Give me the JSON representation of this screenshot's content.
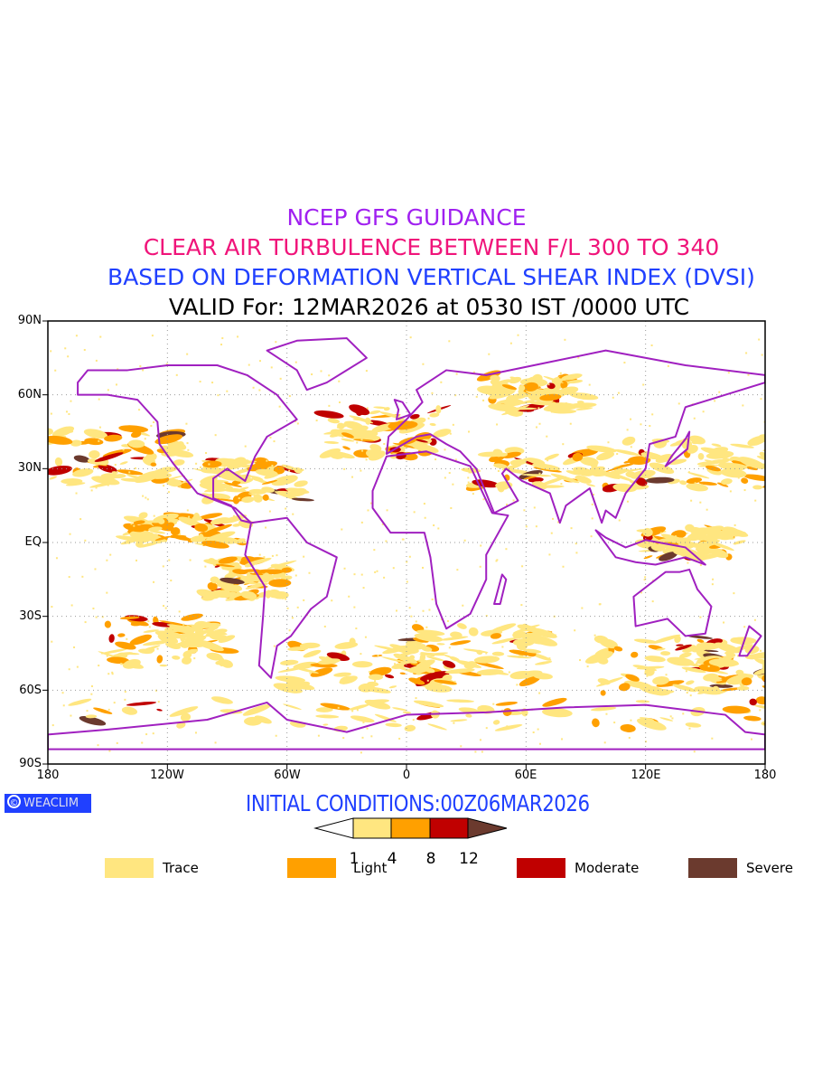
{
  "titles": {
    "line1": "NCEP GFS GUIDANCE",
    "line2": "CLEAR AIR TURBULENCE BETWEEN F/L 300 TO 340",
    "line3": "BASED ON DEFORMATION VERTICAL SHEAR INDEX (DVSI)",
    "line4": "VALID For: 12MAR2026 at 0530 IST /0000 UTC"
  },
  "axes": {
    "y_labels": [
      "90N",
      "60N",
      "30N",
      "EQ",
      "30S",
      "60S",
      "90S"
    ],
    "x_labels": [
      "180",
      "120W",
      "60W",
      "0",
      "60E",
      "120E",
      "180"
    ]
  },
  "logo": {
    "symbol": "©",
    "text": "WEACLIM"
  },
  "initial_conditions": "INITIAL CONDITIONS:00Z06MAR2026",
  "colorbar": {
    "ticks": [
      "1",
      "4",
      "8",
      "12"
    ],
    "colors": [
      "#ffffff",
      "#ffe680",
      "#ffa000",
      "#c00000",
      "#6b3a2e"
    ]
  },
  "legend": [
    {
      "label": "Trace",
      "color": "#ffe680"
    },
    {
      "label": "Light",
      "color": "#ffa000"
    },
    {
      "label": "Moderate",
      "color": "#c00000"
    },
    {
      "label": "Severe",
      "color": "#6b3a2e"
    }
  ],
  "colors": {
    "coast": "#a020c0",
    "border": "#000000"
  }
}
